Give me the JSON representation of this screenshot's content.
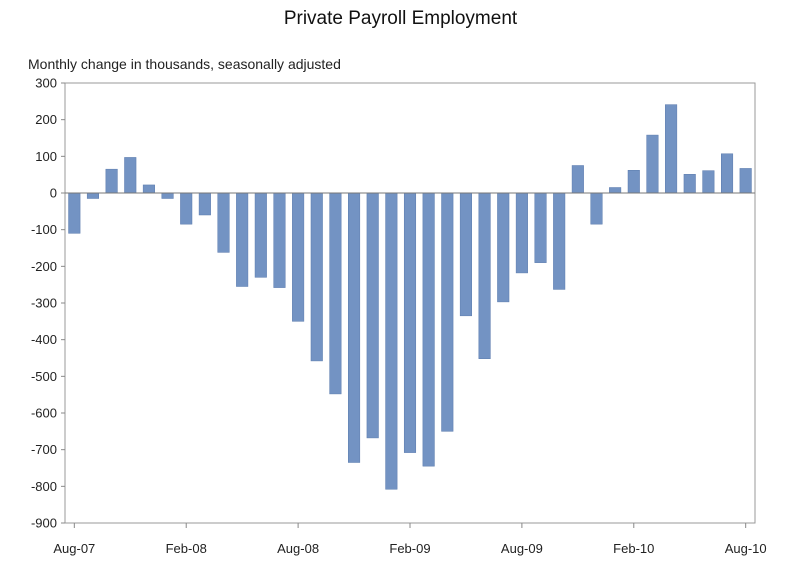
{
  "chart_data": {
    "type": "bar",
    "title": "Private Payroll Employment",
    "subtitle": "Monthly change in thousands, seasonally adjusted",
    "xlabel": "",
    "ylabel": "",
    "ylim": [
      -900,
      300
    ],
    "yticks": [
      300,
      200,
      100,
      0,
      -100,
      -200,
      -300,
      -400,
      -500,
      -600,
      -700,
      -800,
      -900
    ],
    "ytick_labels": [
      "300",
      "200",
      "100",
      "0",
      "-100",
      "-200",
      "-300",
      "-400",
      "-500",
      "-600",
      "-700",
      "-800",
      "-900"
    ],
    "xtick_labels": [
      {
        "label": "Aug-07",
        "index": 0
      },
      {
        "label": "Feb-08",
        "index": 6
      },
      {
        "label": "Aug-08",
        "index": 12
      },
      {
        "label": "Feb-09",
        "index": 18
      },
      {
        "label": "Aug-09",
        "index": 24
      },
      {
        "label": "Feb-10",
        "index": 30
      },
      {
        "label": "Aug-10",
        "index": 36
      }
    ],
    "categories": [
      "Aug-07",
      "Sep-07",
      "Oct-07",
      "Nov-07",
      "Dec-07",
      "Jan-08",
      "Feb-08",
      "Mar-08",
      "Apr-08",
      "May-08",
      "Jun-08",
      "Jul-08",
      "Aug-08",
      "Sep-08",
      "Oct-08",
      "Nov-08",
      "Dec-08",
      "Jan-09",
      "Feb-09",
      "Mar-09",
      "Apr-09",
      "May-09",
      "Jun-09",
      "Jul-09",
      "Aug-09",
      "Sep-09",
      "Oct-09",
      "Nov-09",
      "Dec-09",
      "Jan-10",
      "Feb-10",
      "Mar-10",
      "Apr-10",
      "May-10",
      "Jun-10",
      "Jul-10",
      "Aug-10"
    ],
    "values": [
      -110,
      -15,
      65,
      97,
      22,
      -15,
      -85,
      -60,
      -162,
      -255,
      -230,
      -258,
      -350,
      -458,
      -548,
      -735,
      -668,
      -808,
      -708,
      -745,
      -650,
      -335,
      -452,
      -297,
      -218,
      -190,
      -263,
      75,
      -85,
      15,
      62,
      158,
      241,
      51,
      61,
      107,
      67
    ],
    "grid": false,
    "legend": "none",
    "colors": {
      "bar": "#7393C3",
      "bar_edge": "#5A7AAD",
      "axis": "#888888"
    }
  }
}
